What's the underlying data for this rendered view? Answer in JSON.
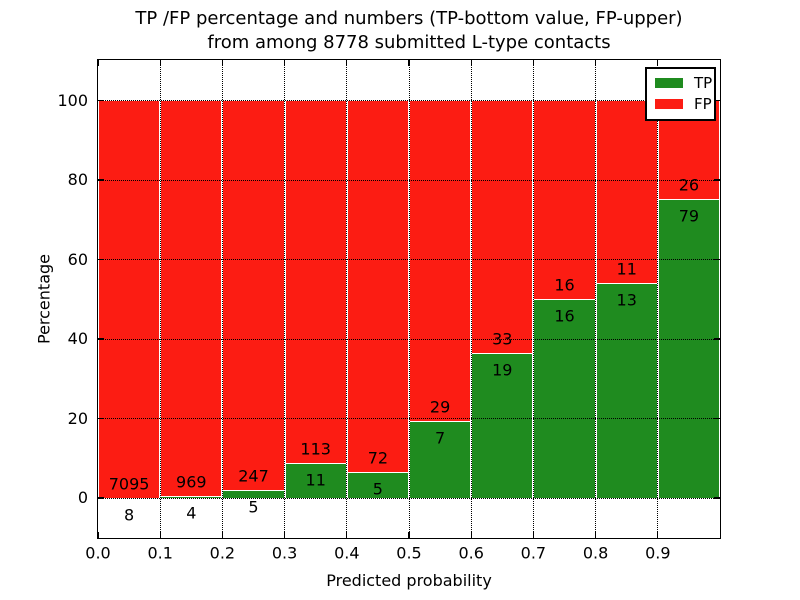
{
  "chart_data": {
    "type": "bar",
    "stacked": true,
    "normalized": "each bin stacked to 100%",
    "title_line1": "TP /FP percentage and numbers (TP-bottom value, FP-upper)",
    "title_line2": "from among 8778 submitted L-type contacts",
    "total_contacts": 8778,
    "xlabel": "Predicted probability",
    "ylabel": "Percentage",
    "xlim": [
      0.0,
      1.0
    ],
    "ylim": [
      -10.6,
      110.2
    ],
    "grid": "dotted black, drawn above bars",
    "legend_position": "upper right",
    "x_tick_labels": [
      "0.0",
      "0.1",
      "0.2",
      "0.3",
      "0.4",
      "0.5",
      "0.6",
      "0.7",
      "0.8",
      "0.9"
    ],
    "y_ticks": [
      0,
      20,
      40,
      60,
      80,
      100
    ],
    "series": [
      {
        "name": "TP",
        "color": "#1f8b1f"
      },
      {
        "name": "FP",
        "color": "#fc1c13"
      }
    ],
    "bins": [
      {
        "x_start": 0.0,
        "x_end": 0.1,
        "tp": 8,
        "fp": 7095,
        "tp_pct": 0.11
      },
      {
        "x_start": 0.1,
        "x_end": 0.2,
        "tp": 4,
        "fp": 969,
        "tp_pct": 0.41
      },
      {
        "x_start": 0.2,
        "x_end": 0.3,
        "tp": 5,
        "fp": 247,
        "tp_pct": 1.98
      },
      {
        "x_start": 0.3,
        "x_end": 0.4,
        "tp": 11,
        "fp": 113,
        "tp_pct": 8.87
      },
      {
        "x_start": 0.4,
        "x_end": 0.5,
        "tp": 5,
        "fp": 72,
        "tp_pct": 6.49
      },
      {
        "x_start": 0.5,
        "x_end": 0.6,
        "tp": 7,
        "fp": 29,
        "tp_pct": 19.44
      },
      {
        "x_start": 0.6,
        "x_end": 0.7,
        "tp": 19,
        "fp": 33,
        "tp_pct": 36.54
      },
      {
        "x_start": 0.7,
        "x_end": 0.8,
        "tp": 16,
        "fp": 16,
        "tp_pct": 50.0
      },
      {
        "x_start": 0.8,
        "x_end": 0.9,
        "tp": 13,
        "fp": 11,
        "tp_pct": 54.17
      },
      {
        "x_start": 0.9,
        "x_end": 1.0,
        "tp": 79,
        "fp": 26,
        "tp_pct": 75.24
      }
    ]
  }
}
